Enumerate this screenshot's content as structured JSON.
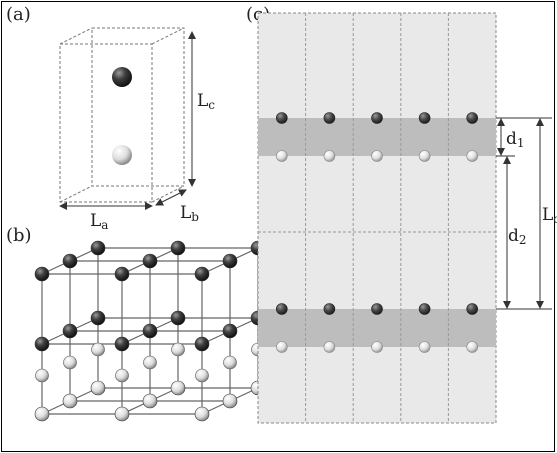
{
  "panels": {
    "a": {
      "label": "(a)",
      "La_main": "L",
      "La_sub": "a",
      "Lb_main": "L",
      "Lb_sub": "b",
      "Lc_main": "L",
      "Lc_sub": "c"
    },
    "b": {
      "label": "(b)"
    },
    "c": {
      "label": "(c)",
      "d1_main": "d",
      "d1_sub": "1",
      "d2_main": "d",
      "d2_sub": "2",
      "Lc_main": "L",
      "Lc_sub": "c"
    }
  },
  "colors": {
    "dark_atom": "#3f3f3f",
    "light_atom": "#e6e6e6",
    "slab_background": "#e9e9e9",
    "shaded_layer": "#bdbdbd",
    "line": "#333333"
  }
}
